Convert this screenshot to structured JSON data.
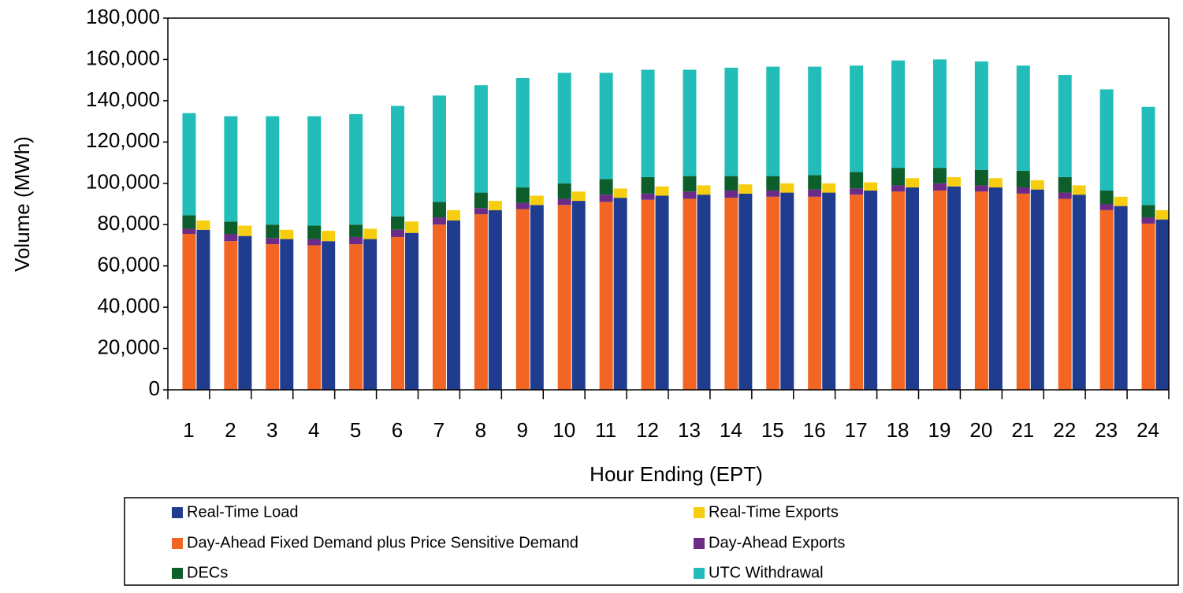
{
  "chart_data": {
    "type": "grouped-stacked-bar",
    "x_label": "Hour Ending (EPT)",
    "y_label": "Volume (MWh)",
    "categories": [
      "1",
      "2",
      "3",
      "4",
      "5",
      "6",
      "7",
      "8",
      "9",
      "10",
      "11",
      "12",
      "13",
      "14",
      "15",
      "16",
      "17",
      "18",
      "19",
      "20",
      "21",
      "22",
      "23",
      "24"
    ],
    "ylim": [
      0,
      180000
    ],
    "yticks": [
      0,
      {
        "value": 20000,
        "label": "20,000"
      },
      {
        "value": 40000,
        "label": "40,000"
      },
      {
        "value": 60000,
        "label": "60,000"
      },
      {
        "value": 80000,
        "label": "80,000"
      },
      {
        "value": 100000,
        "label": "100,000"
      },
      {
        "value": 120000,
        "label": "120,000"
      },
      {
        "value": 140000,
        "label": "140,000"
      },
      {
        "value": 160000,
        "label": "160,000"
      },
      {
        "value": 180000,
        "label": "180,000"
      }
    ],
    "legend_columns": 2,
    "series": [
      {
        "name": "Real-Time Load",
        "color": "#1f3c8f",
        "stack": 1,
        "values": [
          77500,
          74500,
          73000,
          72000,
          73000,
          76000,
          82000,
          87000,
          89500,
          91500,
          93000,
          94000,
          94500,
          95000,
          95500,
          95500,
          96500,
          98000,
          98500,
          98000,
          97000,
          94500,
          89000,
          82500
        ]
      },
      {
        "name": "Real-Time Exports",
        "color": "#f7ce0f",
        "stack": 1,
        "values": [
          4500,
          5000,
          4500,
          5000,
          5000,
          5500,
          5000,
          4500,
          4500,
          4500,
          4500,
          4500,
          4500,
          4500,
          4500,
          4500,
          4000,
          4500,
          4500,
          4500,
          4500,
          4500,
          4500,
          4500
        ]
      },
      {
        "name": "Day-Ahead Fixed Demand plus Price Sensitive Demand",
        "color": "#f26522",
        "stack": 0,
        "values": [
          75500,
          72000,
          70500,
          70000,
          70500,
          74000,
          80000,
          85000,
          87500,
          89500,
          91000,
          92000,
          92500,
          93000,
          93500,
          93500,
          94500,
          96000,
          96500,
          96000,
          95000,
          92500,
          87000,
          80500
        ]
      },
      {
        "name": "Day-Ahead Exports",
        "color": "#6b2b86",
        "stack": 0,
        "values": [
          2500,
          3500,
          3000,
          3000,
          3500,
          3500,
          3500,
          3000,
          3000,
          3000,
          3500,
          3000,
          3500,
          3500,
          3000,
          3500,
          3000,
          3000,
          3500,
          3000,
          3000,
          3000,
          3000,
          3000
        ]
      },
      {
        "name": "DECs",
        "color": "#0d5e2b",
        "stack": 0,
        "values": [
          6500,
          6000,
          6500,
          6500,
          6000,
          6500,
          7500,
          7500,
          7500,
          7500,
          7500,
          8000,
          7500,
          7000,
          7000,
          7000,
          8000,
          8500,
          7500,
          7500,
          8000,
          7500,
          6500,
          6000
        ]
      },
      {
        "name": "UTC Withdrawal",
        "color": "#22bdb9",
        "stack": 0,
        "values": [
          49500,
          51000,
          52500,
          53000,
          53500,
          53500,
          51500,
          52000,
          53000,
          53500,
          51500,
          52000,
          51500,
          52500,
          53000,
          52500,
          51500,
          52000,
          52500,
          52500,
          51000,
          49500,
          49000,
          47500
        ]
      }
    ]
  }
}
